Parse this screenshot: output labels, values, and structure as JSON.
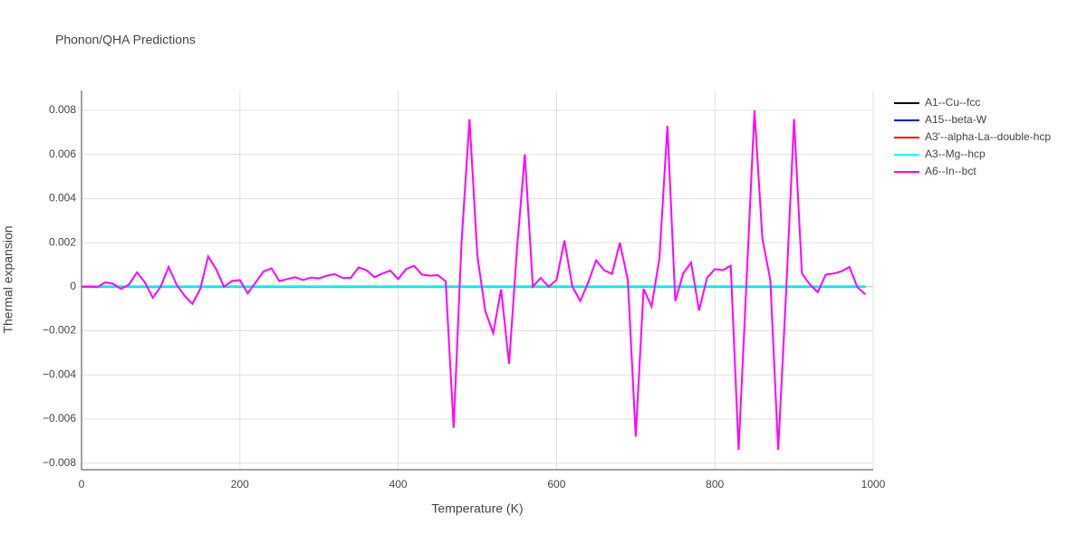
{
  "chart_data": {
    "type": "line",
    "title": "Phonon/QHA Predictions",
    "xlabel": "Temperature (K)",
    "ylabel": "Thermal expansion",
    "x": [
      0,
      10,
      20,
      30,
      40,
      50,
      60,
      70,
      80,
      90,
      100,
      110,
      120,
      130,
      140,
      150,
      160,
      170,
      180,
      190,
      200,
      210,
      220,
      230,
      240,
      250,
      260,
      270,
      280,
      290,
      300,
      310,
      320,
      330,
      340,
      350,
      360,
      370,
      380,
      390,
      400,
      410,
      420,
      430,
      440,
      450,
      460,
      470,
      480,
      490,
      500,
      510,
      520,
      530,
      540,
      550,
      560,
      570,
      580,
      590,
      600,
      610,
      620,
      630,
      640,
      650,
      660,
      670,
      680,
      690,
      700,
      710,
      720,
      730,
      740,
      750,
      760,
      770,
      780,
      790,
      800,
      810,
      820,
      830,
      840,
      850,
      860,
      870,
      880,
      890,
      900,
      910,
      920,
      930,
      940,
      950,
      960,
      970,
      980,
      990
    ],
    "series": [
      {
        "name": "A1--Cu--fcc",
        "color": "#000000",
        "values": [
          0,
          0,
          0,
          0,
          0,
          0,
          0,
          0,
          0,
          0,
          0,
          0,
          0,
          0,
          0,
          0,
          0,
          0,
          0,
          0,
          0,
          0,
          0,
          0,
          0,
          0,
          0,
          0,
          0,
          0,
          0,
          0,
          0,
          0,
          0,
          0,
          0,
          0,
          0,
          0,
          0,
          0,
          0,
          0,
          0,
          0,
          0,
          0,
          0,
          0,
          0,
          0,
          0,
          0,
          0,
          0,
          0,
          0,
          0,
          0,
          0,
          0,
          0,
          0,
          0,
          0,
          0,
          0,
          0,
          0,
          0,
          0,
          0,
          0,
          0,
          0,
          0,
          0,
          0,
          0,
          0,
          0,
          0,
          0,
          0,
          0,
          0,
          0,
          0,
          0,
          0,
          0,
          0,
          0,
          0,
          0,
          0,
          0,
          0,
          0
        ]
      },
      {
        "name": "A15--beta-W",
        "color": "#0000ff",
        "values": [
          0,
          0,
          0,
          0,
          0,
          0,
          0,
          0,
          0,
          0,
          0,
          0,
          0,
          0,
          0,
          0,
          0,
          0,
          0,
          0,
          0,
          0,
          0,
          0,
          0,
          0,
          0,
          0,
          0,
          0,
          0,
          0,
          0,
          0,
          0,
          0,
          0,
          0,
          0,
          0,
          0,
          0,
          0,
          0,
          0,
          0,
          0,
          0,
          0,
          0,
          0,
          0,
          0,
          0,
          0,
          0,
          0,
          0,
          0,
          0,
          0,
          0,
          0,
          0,
          0,
          0,
          0,
          0,
          0,
          0,
          0,
          0,
          0,
          0,
          0,
          0,
          0,
          0,
          0,
          0,
          0,
          0,
          0,
          0,
          0,
          0,
          0,
          0,
          0,
          0,
          0,
          0,
          0,
          0,
          0,
          0,
          0,
          0,
          0,
          0
        ]
      },
      {
        "name": "A3'--alpha-La--double-hcp",
        "color": "#ff0000",
        "values": [
          0,
          0,
          0,
          0,
          0,
          0,
          0,
          0,
          0,
          0,
          0,
          0,
          0,
          0,
          0,
          0,
          0,
          0,
          0,
          0,
          0,
          0,
          0,
          0,
          0,
          0,
          0,
          0,
          0,
          0,
          0,
          0,
          0,
          0,
          0,
          0,
          0,
          0,
          0,
          0,
          0,
          0,
          0,
          0,
          0,
          0,
          0,
          0,
          0,
          0,
          0,
          0,
          0,
          0,
          0,
          0,
          0,
          0,
          0,
          0,
          0,
          0,
          0,
          0,
          0,
          0,
          0,
          0,
          0,
          0,
          0,
          0,
          0,
          0,
          0,
          0,
          0,
          0,
          0,
          0,
          0,
          0,
          0,
          0,
          0,
          0,
          0,
          0,
          0,
          0,
          0,
          0,
          0,
          0,
          0,
          0,
          0,
          0,
          0,
          0
        ]
      },
      {
        "name": "A3--Mg--hcp",
        "color": "#00ffff",
        "values": [
          0,
          0,
          0,
          0,
          0,
          0,
          0,
          0,
          0,
          0,
          0,
          0,
          0,
          0,
          0,
          0,
          0,
          0,
          0,
          0,
          0,
          0,
          0,
          0,
          0,
          0,
          0,
          0,
          0,
          0,
          0,
          0,
          0,
          0,
          0,
          0,
          0,
          0,
          0,
          0,
          0,
          0,
          0,
          0,
          0,
          0,
          0,
          0,
          0,
          0,
          0,
          0,
          0,
          0,
          0,
          0,
          0,
          0,
          0,
          0,
          0,
          0,
          0,
          0,
          0,
          0,
          0,
          0,
          0,
          0,
          0,
          0,
          0,
          0,
          0,
          0,
          0,
          0,
          0,
          0,
          0,
          0,
          0,
          0,
          0,
          0,
          0,
          0,
          0,
          0,
          0,
          0,
          0,
          0,
          0,
          0,
          0,
          0,
          0,
          0
        ]
      },
      {
        "name": "A6--In--bct",
        "color": "#ff00ff",
        "values": [
          0,
          0,
          -2e-05,
          0.0002,
          0.00013,
          -0.0001,
          0.0001,
          0.00065,
          0.0002,
          -0.0005,
          0,
          0.0009,
          0.0001,
          -0.0004,
          -0.00078,
          -0.0001,
          0.00137,
          0.0008,
          0,
          0.00026,
          0.0003,
          -0.0003,
          0.0002,
          0.0007,
          0.00083,
          0.00025,
          0.00035,
          0.00043,
          0.0003,
          0.00042,
          0.00038,
          0.0005,
          0.00057,
          0.0004,
          0.0004,
          0.00088,
          0.00075,
          0.00043,
          0.0006,
          0.00073,
          0.00035,
          0.0008,
          0.00095,
          0.00055,
          0.0005,
          0.00053,
          0.00025,
          -0.0064,
          0.002,
          0.0076,
          0.0014,
          -0.0011,
          -0.0021,
          -0.00012,
          -0.0035,
          0.0017,
          0.006,
          0,
          0.0004,
          0,
          0.0003,
          0.0021,
          0,
          -0.00065,
          0.0002,
          0.0012,
          0.00075,
          0.00058,
          0.002,
          0.0003,
          -0.0068,
          -0.0001,
          -0.0009,
          0.0013,
          0.0073,
          -0.00065,
          0.0006,
          0.0011,
          -0.00108,
          0.0004,
          0.0008,
          0.00075,
          0.00095,
          -0.0074,
          0.0003,
          0.008,
          0.0022,
          0.0003,
          -0.0074,
          -0.0002,
          0.0076,
          0.0006,
          0.0001,
          -0.00025,
          0.00055,
          0.0006,
          0.0007,
          0.0009,
          -2e-05,
          -0.00035
        ]
      }
    ],
    "xlim": [
      0,
      1000
    ],
    "xticks": [
      0,
      200,
      400,
      600,
      800,
      1000
    ],
    "ylim": [
      -0.0083,
      0.0089
    ],
    "yticks": [
      {
        "value": -0.008,
        "label": "−0.008"
      },
      {
        "value": -0.006,
        "label": "−0.006"
      },
      {
        "value": -0.004,
        "label": "−0.004"
      },
      {
        "value": -0.002,
        "label": "−0.002"
      },
      0,
      0.002,
      0.004,
      0.006,
      0.008
    ],
    "grid": true,
    "legend": "right"
  }
}
